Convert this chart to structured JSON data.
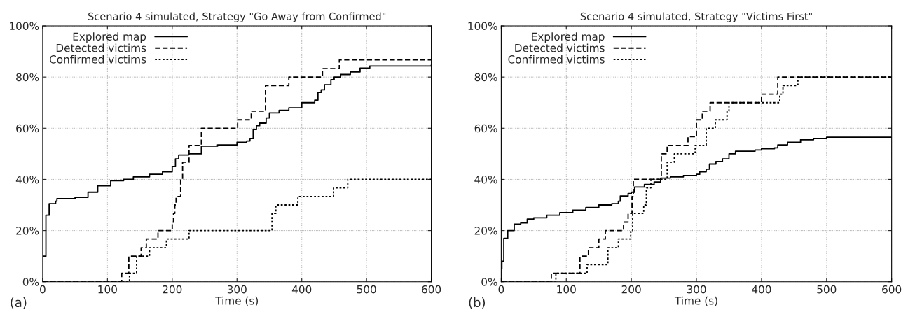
{
  "chart_data": [
    {
      "type": "step",
      "title": "Scenario 4 simulated, Strategy \"Go Away from Confirmed\"",
      "xlabel": "Time (s)",
      "annotations": [
        "(a)"
      ],
      "xlim": [
        0,
        600
      ],
      "xticks": [
        0,
        100,
        200,
        300,
        400,
        500,
        600
      ],
      "ylim": [
        0,
        100
      ],
      "yticks": [
        {
          "value": 0,
          "label": "0%"
        },
        {
          "value": 20,
          "label": "20%"
        },
        {
          "value": 40,
          "label": "40%"
        },
        {
          "value": 60,
          "label": "60%"
        },
        {
          "value": 80,
          "label": "80%"
        },
        {
          "value": 100,
          "label": "100%"
        }
      ],
      "grid": true,
      "legend": "top left",
      "series": [
        {
          "name": "Explored map",
          "color": "#000000",
          "line_style": "solid",
          "x": [
            0,
            5,
            10,
            20,
            22,
            50,
            70,
            85,
            105,
            125,
            140,
            165,
            185,
            200,
            205,
            210,
            225,
            245,
            270,
            300,
            315,
            320,
            325,
            330,
            335,
            345,
            350,
            365,
            380,
            400,
            420,
            425,
            430,
            435,
            445,
            450,
            460,
            475,
            490,
            505,
            600
          ],
          "values": [
            10,
            26,
            30.5,
            31.5,
            32.5,
            33,
            35,
            37.5,
            39.5,
            40,
            41,
            42,
            43,
            45,
            48,
            49.5,
            50,
            53,
            53.5,
            54.5,
            55,
            56,
            59.5,
            61,
            62,
            64,
            66,
            67,
            68,
            70,
            71,
            74,
            75,
            77,
            79,
            80,
            81,
            82,
            83.5,
            84.3,
            84.7
          ]
        },
        {
          "name": "Detected victims",
          "color": "#000000",
          "line_style": "dashed",
          "x": [
            0,
            122,
            133,
            152,
            160,
            178,
            200,
            202,
            204,
            206,
            213,
            216,
            226,
            245,
            301,
            322,
            344,
            380,
            432,
            458,
            600
          ],
          "values": [
            0,
            3.3,
            10,
            13.3,
            16.7,
            20,
            23.3,
            26.7,
            30,
            33.3,
            40,
            46.7,
            53.3,
            60,
            63.3,
            66.7,
            76.7,
            80,
            83.3,
            86.7,
            86.7
          ]
        },
        {
          "name": "Confirmed victims",
          "color": "#000000",
          "line_style": "dotted",
          "x": [
            0,
            134,
            145,
            165,
            191,
            226,
            354,
            360,
            394,
            449,
            471,
            600
          ],
          "values": [
            0,
            3.3,
            10,
            13.3,
            16.7,
            20,
            26.7,
            30,
            33.3,
            36.7,
            40,
            40
          ]
        }
      ]
    },
    {
      "type": "step",
      "title": "Scenario 4 simulated, Strategy \"Victims First\"",
      "xlabel": "Time (s)",
      "annotations": [
        "(b)"
      ],
      "xlim": [
        0,
        600
      ],
      "xticks": [
        0,
        100,
        200,
        300,
        400,
        500,
        600
      ],
      "ylim": [
        0,
        100
      ],
      "yticks": [
        {
          "value": 0,
          "label": "0%"
        },
        {
          "value": 20,
          "label": "20%"
        },
        {
          "value": 40,
          "label": "40%"
        },
        {
          "value": 60,
          "label": "60%"
        },
        {
          "value": 80,
          "label": "80%"
        },
        {
          "value": 100,
          "label": "100%"
        }
      ],
      "grid": true,
      "legend": "top left",
      "series": [
        {
          "name": "Explored map",
          "color": "#000000",
          "line_style": "solid",
          "x": [
            0,
            1,
            4,
            10,
            20,
            30,
            40,
            50,
            70,
            90,
            110,
            130,
            150,
            170,
            180,
            183,
            195,
            200,
            205,
            220,
            235,
            245,
            260,
            280,
            300,
            305,
            315,
            320,
            330,
            340,
            350,
            360,
            390,
            400,
            420,
            425,
            440,
            460,
            480,
            500,
            600
          ],
          "values": [
            5,
            8,
            17,
            20,
            22.5,
            23,
            24.5,
            25,
            26,
            27,
            28,
            29,
            30,
            30.5,
            31.5,
            33.5,
            34.5,
            35,
            37,
            38,
            39,
            40.5,
            41,
            41.5,
            42,
            43,
            44,
            46,
            47,
            48,
            50,
            51,
            51.5,
            52,
            52.3,
            53.5,
            54.5,
            55.5,
            56,
            56.5,
            56.5
          ]
        },
        {
          "name": "Detected victims",
          "color": "#000000",
          "line_style": "dashed",
          "x": [
            0,
            77,
            121,
            134,
            150,
            160,
            188,
            195,
            201,
            203,
            246,
            255,
            287,
            300,
            309,
            321,
            400,
            425,
            600
          ],
          "values": [
            0,
            3.3,
            10,
            13.3,
            16.7,
            20,
            23.3,
            26.7,
            33.3,
            40,
            50,
            53.3,
            56.7,
            63.3,
            66.7,
            70,
            73.3,
            80,
            80
          ]
        },
        {
          "name": "Confirmed victims",
          "color": "#000000",
          "line_style": "dotted",
          "x": [
            0,
            84,
            132,
            164,
            180,
            199,
            202,
            219,
            223,
            230,
            255,
            266,
            298,
            315,
            329,
            347,
            350,
            428,
            433,
            456,
            600
          ],
          "values": [
            0,
            3.3,
            6.7,
            13.3,
            16.7,
            20,
            26.7,
            30,
            36.7,
            40,
            46.7,
            50,
            53.3,
            60,
            63.3,
            66.7,
            70,
            73.3,
            76.7,
            80,
            80
          ]
        }
      ]
    }
  ]
}
